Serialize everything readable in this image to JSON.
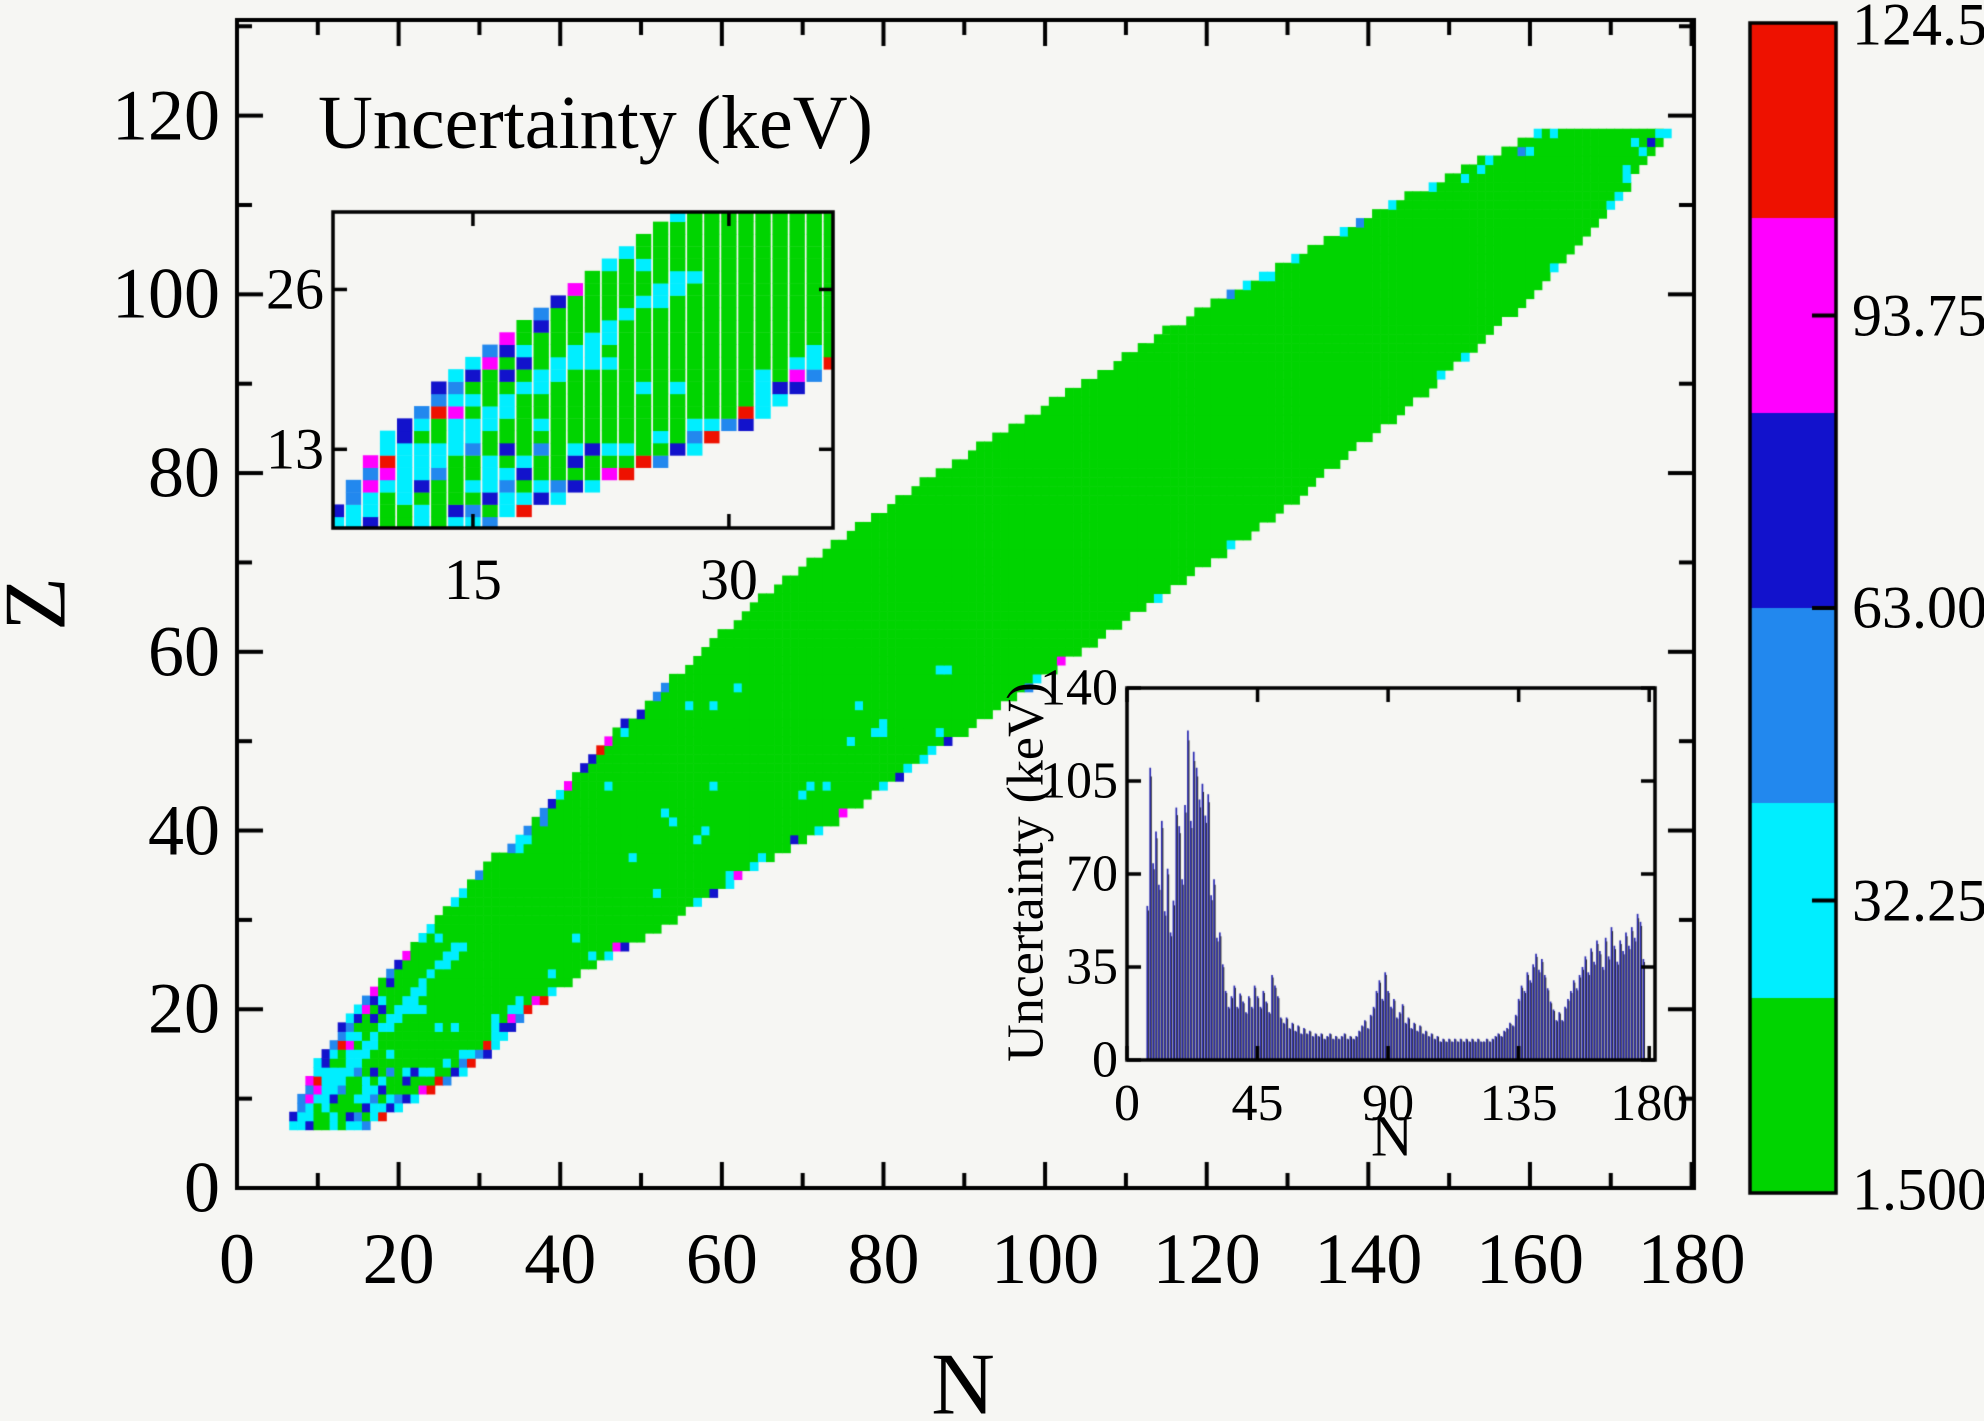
{
  "chart_data": {
    "type": "heatmap",
    "main": {
      "title": "Uncertainty (keV)",
      "xlabel": "N",
      "ylabel": "Z",
      "xlim": [
        0,
        180.3
      ],
      "ylim": [
        0,
        130.7
      ],
      "x_ticks": [
        0,
        20,
        40,
        60,
        80,
        100,
        120,
        140,
        160,
        180
      ],
      "y_ticks": [
        0,
        20,
        40,
        60,
        80,
        100,
        120
      ],
      "grid": false
    },
    "palette": {
      "green": "#00d400",
      "cyan": "#00eeff",
      "dodger": "#2288ee",
      "blue": "#1212cc",
      "magenta": "#ff00ff",
      "red": "#ee1100",
      "bar": "#2a2ab2",
      "frame": "#000000",
      "background": "#f6f6f3"
    },
    "band": {
      "z_range": [
        7,
        118
      ],
      "nmin_ctrl": [
        [
          7,
          7
        ],
        [
          8,
          7
        ],
        [
          10,
          8
        ],
        [
          12,
          9
        ],
        [
          14,
          10
        ],
        [
          16,
          12
        ],
        [
          18,
          13
        ],
        [
          20,
          15
        ],
        [
          24,
          19
        ],
        [
          28,
          23
        ],
        [
          32,
          27
        ],
        [
          36,
          31
        ],
        [
          40,
          36
        ],
        [
          45,
          41
        ],
        [
          50,
          46
        ],
        [
          55,
          52
        ],
        [
          60,
          58
        ],
        [
          65,
          64
        ],
        [
          70,
          71
        ],
        [
          75,
          79
        ],
        [
          80,
          87
        ],
        [
          85,
          96
        ],
        [
          90,
          105
        ],
        [
          95,
          114
        ],
        [
          100,
          123
        ],
        [
          105,
          133
        ],
        [
          110,
          143
        ],
        [
          114,
          152
        ],
        [
          118,
          161
        ]
      ],
      "nmax_ctrl": [
        [
          7,
          16
        ],
        [
          8,
          18
        ],
        [
          10,
          22
        ],
        [
          12,
          26
        ],
        [
          14,
          29
        ],
        [
          16,
          32
        ],
        [
          18,
          34
        ],
        [
          20,
          36
        ],
        [
          24,
          42
        ],
        [
          28,
          50
        ],
        [
          32,
          57
        ],
        [
          36,
          64
        ],
        [
          40,
          72
        ],
        [
          45,
          80
        ],
        [
          50,
          88
        ],
        [
          55,
          96
        ],
        [
          60,
          104
        ],
        [
          65,
          112
        ],
        [
          70,
          120
        ],
        [
          75,
          128
        ],
        [
          82,
          137
        ],
        [
          90,
          148
        ],
        [
          95,
          154
        ],
        [
          100,
          160
        ],
        [
          105,
          165
        ],
        [
          110,
          170
        ],
        [
          114,
          173
        ],
        [
          118,
          177
        ]
      ]
    },
    "extra_cells": [
      {
        "n": 115,
        "z": 96,
        "c": "green"
      },
      {
        "n": 112,
        "z": 94,
        "c": "green"
      },
      {
        "n": 157,
        "z": 114,
        "c": "green"
      },
      {
        "n": 160,
        "z": 116,
        "c": "cyan"
      },
      {
        "n": 173,
        "z": 117,
        "c": "cyan"
      },
      {
        "n": 175,
        "z": 117,
        "c": "blue"
      },
      {
        "n": 176,
        "z": 118,
        "c": "cyan"
      }
    ],
    "seed": 3,
    "zoom_inset": {
      "xlim": [
        6.8,
        36.1
      ],
      "ylim": [
        6.6,
        32.3
      ],
      "x_ticks": [
        15,
        30
      ],
      "y_ticks": [
        13,
        26
      ]
    },
    "bars_inset": {
      "type": "bar",
      "xlabel": "N",
      "ylabel": "Uncertainty (keV)",
      "xlim": [
        0,
        182
      ],
      "ylim": [
        0,
        140
      ],
      "x_ticks": [
        0,
        45,
        90,
        135,
        180
      ],
      "y_ticks": [
        0,
        35,
        70,
        105,
        140
      ],
      "n_start": 7,
      "values": [
        58,
        110,
        74,
        86,
        66,
        90,
        56,
        72,
        48,
        60,
        95,
        88,
        68,
        96,
        124,
        90,
        116,
        110,
        98,
        104,
        92,
        100,
        62,
        68,
        46,
        48,
        36,
        26,
        20,
        24,
        28,
        20,
        25,
        22,
        18,
        24,
        20,
        28,
        24,
        20,
        26,
        22,
        18,
        32,
        28,
        24,
        16,
        14,
        16,
        12,
        14,
        11,
        13,
        10,
        12,
        10,
        11,
        9,
        10,
        9,
        10,
        8,
        9,
        10,
        8,
        9,
        8,
        9,
        10,
        8,
        9,
        8,
        9,
        11,
        13,
        15,
        12,
        17,
        20,
        26,
        30,
        23,
        33,
        26,
        20,
        23,
        16,
        18,
        21,
        14,
        16,
        12,
        14,
        11,
        13,
        10,
        11,
        9,
        10,
        8,
        9,
        7,
        8,
        7,
        8,
        7,
        8,
        7,
        8,
        7,
        8,
        7,
        8,
        7,
        8,
        7,
        7,
        8,
        7,
        8,
        9,
        10,
        9,
        11,
        12,
        14,
        13,
        17,
        23,
        28,
        26,
        33,
        30,
        36,
        40,
        34,
        38,
        32,
        27,
        22,
        19,
        15,
        18,
        15,
        20,
        23,
        26,
        30,
        27,
        32,
        35,
        39,
        33,
        42,
        37,
        45,
        41,
        35,
        46,
        39,
        50,
        43,
        37,
        45,
        41,
        48,
        43,
        50,
        46,
        55,
        52,
        38
      ]
    },
    "colorbar": {
      "vmin": 1.5,
      "vmax": 124.5,
      "tick_values": [
        124.5,
        93.75,
        63.0,
        32.25,
        1.5
      ],
      "tick_labels": [
        "124.5",
        "93.75",
        "63.00",
        "32.25",
        "1.500"
      ],
      "segments_top_to_bottom": [
        "#ee1100",
        "#ff00ff",
        "#1212cc",
        "#2288ee",
        "#00eeff",
        "#00d400"
      ]
    }
  }
}
